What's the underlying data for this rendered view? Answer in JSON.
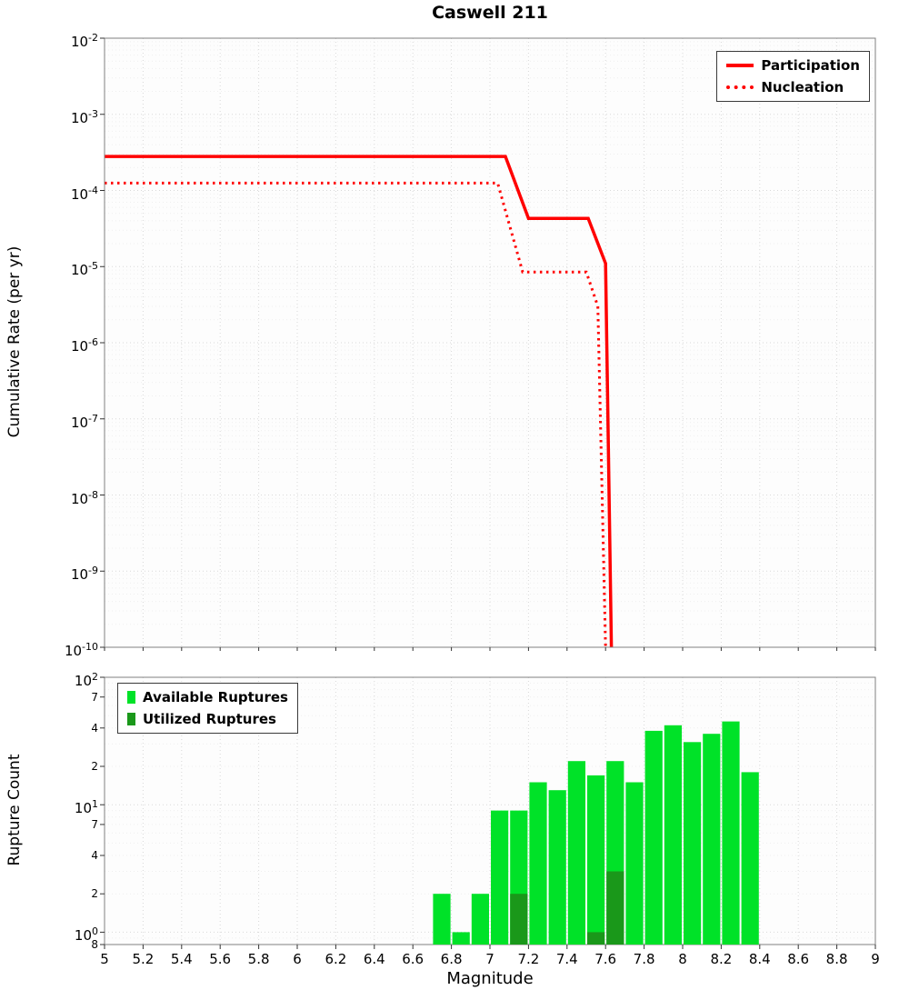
{
  "colors": {
    "participation": "#ff0000",
    "nucleation": "#ff0000",
    "available": "#00e228",
    "utilized": "#1a981a",
    "grid_major": "#d9d9d9",
    "grid_minor": "#efefef",
    "axis": "#808080",
    "tick": "#333333",
    "plot_bg": "#fdfdfd"
  },
  "chart_data": [
    {
      "type": "line",
      "title": "Caswell 211",
      "xlabel": "",
      "ylabel": "Cumulative Rate (per yr)",
      "xlim": [
        5,
        9
      ],
      "ylim": [
        1e-10,
        0.01
      ],
      "yscale": "log",
      "grid": true,
      "legend_position": "top-right",
      "yticks": [
        {
          "v": 0.01,
          "label": "10^-2"
        },
        {
          "v": 0.001,
          "label": "10^-3"
        },
        {
          "v": 0.0001,
          "label": "10^-4"
        },
        {
          "v": 1e-05,
          "label": "10^-5"
        },
        {
          "v": 1e-06,
          "label": "10^-6"
        },
        {
          "v": 1e-07,
          "label": "10^-7"
        },
        {
          "v": 1e-08,
          "label": "10^-8"
        },
        {
          "v": 1e-09,
          "label": "10^-9"
        },
        {
          "v": 1e-10,
          "label": "10^-10"
        }
      ],
      "series": [
        {
          "name": "Participation",
          "style": "solid",
          "points": [
            [
              5,
              0.00028
            ],
            [
              7.08,
              0.00028
            ],
            [
              7.2,
              4.3e-05
            ],
            [
              7.51,
              4.3e-05
            ],
            [
              7.6,
              1.1e-05
            ],
            [
              7.63,
              1e-10
            ]
          ]
        },
        {
          "name": "Nucleation",
          "style": "dotted",
          "points": [
            [
              5,
              0.000125
            ],
            [
              7.04,
              0.000125
            ],
            [
              7.17,
              8.5e-06
            ],
            [
              7.5,
              8.5e-06
            ],
            [
              7.56,
              3e-06
            ],
            [
              7.6,
              1e-10
            ]
          ]
        }
      ]
    },
    {
      "type": "bar",
      "title": "",
      "xlabel": "Magnitude",
      "ylabel": "Rupture Count",
      "xlim": [
        5,
        9
      ],
      "ylim": [
        0.8,
        100
      ],
      "yscale": "log",
      "grid": true,
      "bin_width": 0.1,
      "legend_position": "top-left",
      "yticks": [
        {
          "v": 100,
          "label": "10^2",
          "major": true
        },
        {
          "v": 70,
          "label": "7"
        },
        {
          "v": 40,
          "label": "4"
        },
        {
          "v": 20,
          "label": "2"
        },
        {
          "v": 10,
          "label": "10^1",
          "major": true
        },
        {
          "v": 7,
          "label": "7"
        },
        {
          "v": 4,
          "label": "4"
        },
        {
          "v": 2,
          "label": "2"
        },
        {
          "v": 1,
          "label": "10^0",
          "major": true
        },
        {
          "v": 0.8,
          "label": "8"
        }
      ],
      "xticks": [
        {
          "v": 5,
          "label": "5"
        },
        {
          "v": 5.2,
          "label": "5.2"
        },
        {
          "v": 5.4,
          "label": "5.4"
        },
        {
          "v": 5.6,
          "label": "5.6"
        },
        {
          "v": 5.8,
          "label": "5.8"
        },
        {
          "v": 6,
          "label": "6"
        },
        {
          "v": 6.2,
          "label": "6.2"
        },
        {
          "v": 6.4,
          "label": "6.4"
        },
        {
          "v": 6.6,
          "label": "6.6"
        },
        {
          "v": 6.8,
          "label": "6.8"
        },
        {
          "v": 7,
          "label": "7"
        },
        {
          "v": 7.2,
          "label": "7.2"
        },
        {
          "v": 7.4,
          "label": "7.4"
        },
        {
          "v": 7.6,
          "label": "7.6"
        },
        {
          "v": 7.8,
          "label": "7.8"
        },
        {
          "v": 8,
          "label": "8"
        },
        {
          "v": 8.2,
          "label": "8.2"
        },
        {
          "v": 8.4,
          "label": "8.4"
        },
        {
          "v": 8.6,
          "label": "8.6"
        },
        {
          "v": 8.8,
          "label": "8.8"
        },
        {
          "v": 9,
          "label": "9"
        }
      ],
      "series": [
        {
          "name": "Available Ruptures",
          "bins": [
            {
              "m": 6.7,
              "count": 2
            },
            {
              "m": 6.8,
              "count": 1
            },
            {
              "m": 6.9,
              "count": 2
            },
            {
              "m": 7.0,
              "count": 9
            },
            {
              "m": 7.1,
              "count": 9
            },
            {
              "m": 7.2,
              "count": 15
            },
            {
              "m": 7.3,
              "count": 13
            },
            {
              "m": 7.4,
              "count": 22
            },
            {
              "m": 7.5,
              "count": 17
            },
            {
              "m": 7.6,
              "count": 22
            },
            {
              "m": 7.7,
              "count": 15
            },
            {
              "m": 7.8,
              "count": 38
            },
            {
              "m": 7.9,
              "count": 42
            },
            {
              "m": 8.0,
              "count": 31
            },
            {
              "m": 8.1,
              "count": 36
            },
            {
              "m": 8.2,
              "count": 45
            },
            {
              "m": 8.3,
              "count": 18
            }
          ]
        },
        {
          "name": "Utilized Ruptures",
          "bins": [
            {
              "m": 7.1,
              "count": 2
            },
            {
              "m": 7.5,
              "count": 1
            },
            {
              "m": 7.6,
              "count": 3
            }
          ]
        }
      ]
    }
  ]
}
